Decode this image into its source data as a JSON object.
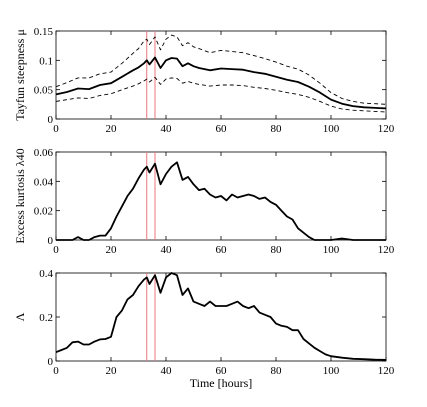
{
  "chart_data": [
    {
      "type": "line",
      "ylabel": "Tayfun steepness μ",
      "xlabel": "",
      "xlim": [
        0,
        120
      ],
      "ylim": [
        0,
        0.15
      ],
      "xticks": [
        0,
        20,
        40,
        60,
        80,
        100,
        120
      ],
      "yticks": [
        0,
        0.05,
        0.1,
        0.15
      ],
      "ytick_labels": [
        "0",
        "0.05",
        "0.1",
        "0.15"
      ],
      "vlines": [
        33,
        36
      ],
      "series": [
        {
          "style": "solid",
          "x": [
            0,
            4,
            8,
            12,
            16,
            20,
            24,
            28,
            30,
            32,
            33,
            34,
            36,
            38,
            40,
            42,
            44,
            46,
            48,
            50,
            52,
            56,
            60,
            64,
            68,
            72,
            76,
            80,
            84,
            88,
            92,
            96,
            100,
            104,
            108,
            112,
            116,
            120
          ],
          "y": [
            0.042,
            0.046,
            0.052,
            0.051,
            0.058,
            0.061,
            0.072,
            0.083,
            0.088,
            0.095,
            0.1,
            0.093,
            0.105,
            0.087,
            0.1,
            0.104,
            0.103,
            0.09,
            0.095,
            0.09,
            0.087,
            0.083,
            0.086,
            0.085,
            0.084,
            0.08,
            0.077,
            0.072,
            0.067,
            0.063,
            0.055,
            0.045,
            0.033,
            0.026,
            0.022,
            0.02,
            0.019,
            0.018
          ]
        },
        {
          "style": "dashed",
          "x": [
            0,
            4,
            8,
            12,
            16,
            20,
            24,
            28,
            30,
            32,
            33,
            34,
            36,
            38,
            40,
            42,
            44,
            46,
            48,
            50,
            52,
            56,
            60,
            64,
            68,
            72,
            76,
            80,
            84,
            88,
            92,
            96,
            100,
            104,
            108,
            112,
            116,
            120
          ],
          "y": [
            0.055,
            0.062,
            0.07,
            0.07,
            0.077,
            0.08,
            0.095,
            0.112,
            0.12,
            0.133,
            0.136,
            0.127,
            0.14,
            0.118,
            0.136,
            0.143,
            0.14,
            0.125,
            0.13,
            0.123,
            0.12,
            0.113,
            0.117,
            0.115,
            0.113,
            0.108,
            0.103,
            0.097,
            0.09,
            0.085,
            0.075,
            0.061,
            0.045,
            0.035,
            0.03,
            0.027,
            0.026,
            0.025
          ]
        },
        {
          "style": "dashed",
          "x": [
            0,
            4,
            8,
            12,
            16,
            20,
            24,
            28,
            30,
            32,
            33,
            34,
            36,
            38,
            40,
            42,
            44,
            46,
            48,
            50,
            52,
            56,
            60,
            64,
            68,
            72,
            76,
            80,
            84,
            88,
            92,
            96,
            100,
            104,
            108,
            112,
            116,
            120
          ],
          "y": [
            0.03,
            0.033,
            0.036,
            0.035,
            0.04,
            0.043,
            0.05,
            0.056,
            0.06,
            0.065,
            0.068,
            0.063,
            0.071,
            0.059,
            0.068,
            0.07,
            0.069,
            0.061,
            0.064,
            0.061,
            0.059,
            0.056,
            0.058,
            0.058,
            0.057,
            0.054,
            0.052,
            0.049,
            0.045,
            0.042,
            0.037,
            0.03,
            0.022,
            0.017,
            0.015,
            0.014,
            0.013,
            0.012
          ]
        }
      ]
    },
    {
      "type": "line",
      "ylabel": "Excess kurtosis λ40",
      "xlabel": "",
      "xlim": [
        0,
        120
      ],
      "ylim": [
        0,
        0.06
      ],
      "xticks": [
        0,
        20,
        40,
        60,
        80,
        100,
        120
      ],
      "yticks": [
        0,
        0.02,
        0.04,
        0.06
      ],
      "ytick_labels": [
        "0",
        "0.02",
        "0.04",
        "0.06"
      ],
      "vlines": [
        33,
        36
      ],
      "series": [
        {
          "style": "solid",
          "x": [
            0,
            4,
            6,
            8,
            10,
            12,
            14,
            16,
            18,
            20,
            22,
            24,
            26,
            28,
            30,
            32,
            33,
            34,
            36,
            38,
            40,
            42,
            44,
            46,
            48,
            50,
            52,
            54,
            56,
            58,
            60,
            62,
            64,
            66,
            68,
            70,
            72,
            74,
            76,
            78,
            80,
            82,
            84,
            86,
            88,
            90,
            92,
            94,
            100,
            104,
            108,
            112,
            120
          ],
          "y": [
            0,
            0,
            0,
            0.002,
            0,
            0,
            0.002,
            0.003,
            0.003,
            0.008,
            0.016,
            0.023,
            0.03,
            0.035,
            0.042,
            0.048,
            0.05,
            0.046,
            0.052,
            0.038,
            0.045,
            0.05,
            0.053,
            0.041,
            0.043,
            0.038,
            0.034,
            0.035,
            0.031,
            0.029,
            0.03,
            0.027,
            0.031,
            0.029,
            0.03,
            0.031,
            0.03,
            0.028,
            0.029,
            0.026,
            0.024,
            0.02,
            0.016,
            0.014,
            0.008,
            0.005,
            0.002,
            0,
            0,
            0.001,
            0,
            0,
            0
          ]
        }
      ]
    },
    {
      "type": "line",
      "ylabel": "Λ",
      "xlabel": "Time [hours]",
      "xlim": [
        0,
        120
      ],
      "ylim": [
        0,
        0.4
      ],
      "xticks": [
        0,
        20,
        40,
        60,
        80,
        100,
        120
      ],
      "yticks": [
        0,
        0.2,
        0.4
      ],
      "ytick_labels": [
        "0",
        "0.2",
        "0.4"
      ],
      "vlines": [
        33,
        36
      ],
      "series": [
        {
          "style": "solid",
          "x": [
            0,
            2,
            4,
            6,
            8,
            10,
            12,
            14,
            16,
            18,
            20,
            22,
            24,
            26,
            28,
            30,
            32,
            33,
            34,
            36,
            38,
            40,
            42,
            44,
            46,
            48,
            50,
            52,
            54,
            56,
            58,
            60,
            62,
            64,
            66,
            68,
            70,
            72,
            74,
            76,
            78,
            80,
            82,
            84,
            86,
            88,
            90,
            92,
            94,
            96,
            98,
            100,
            104,
            108,
            112,
            116,
            120
          ],
          "y": [
            0.04,
            0.05,
            0.06,
            0.085,
            0.088,
            0.075,
            0.075,
            0.088,
            0.098,
            0.1,
            0.11,
            0.2,
            0.23,
            0.28,
            0.3,
            0.34,
            0.37,
            0.38,
            0.35,
            0.39,
            0.31,
            0.38,
            0.4,
            0.39,
            0.3,
            0.33,
            0.27,
            0.26,
            0.25,
            0.27,
            0.25,
            0.25,
            0.25,
            0.26,
            0.27,
            0.25,
            0.24,
            0.25,
            0.22,
            0.21,
            0.2,
            0.17,
            0.16,
            0.155,
            0.14,
            0.14,
            0.1,
            0.08,
            0.06,
            0.045,
            0.03,
            0.022,
            0.015,
            0.01,
            0.008,
            0.006,
            0.005
          ]
        }
      ]
    }
  ]
}
